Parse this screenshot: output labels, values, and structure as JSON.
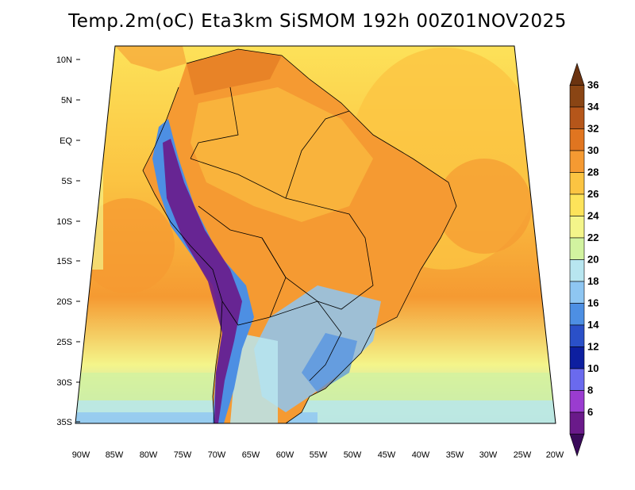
{
  "title": "Temp.2m(oC) Eta3km SiSMOM 192h 00Z01NOV2025",
  "lat_labels": [
    "10N",
    "5N",
    "EQ",
    "5S",
    "10S",
    "15S",
    "20S",
    "25S",
    "30S",
    "35S"
  ],
  "lon_labels": [
    "90W",
    "85W",
    "80W",
    "75W",
    "70W",
    "65W",
    "60W",
    "55W",
    "50W",
    "45W",
    "40W",
    "35W",
    "30W",
    "25W",
    "20W"
  ],
  "colorbar": {
    "labels": [
      "36",
      "34",
      "32",
      "30",
      "28",
      "26",
      "24",
      "22",
      "20",
      "18",
      "16",
      "14",
      "12",
      "10",
      "8",
      "6"
    ],
    "colors": [
      "#6b3310",
      "#8a4514",
      "#b5561a",
      "#e07520",
      "#f59a32",
      "#fbc442",
      "#fde35a",
      "#f4f58a",
      "#d2f3a0",
      "#b8e6f0",
      "#8ec6f2",
      "#4d8fe3",
      "#2a50c8",
      "#0d1fa0",
      "#6a6aee",
      "#9a3cd0",
      "#6a1a8a",
      "#3a0a5a"
    ]
  },
  "colors": {
    "ocean_warm": "#fbc442",
    "ocean_mid": "#f59a32",
    "land_warm": "#f59a32",
    "cool": "#8ec6f2",
    "andes": "#6a1a8a"
  }
}
